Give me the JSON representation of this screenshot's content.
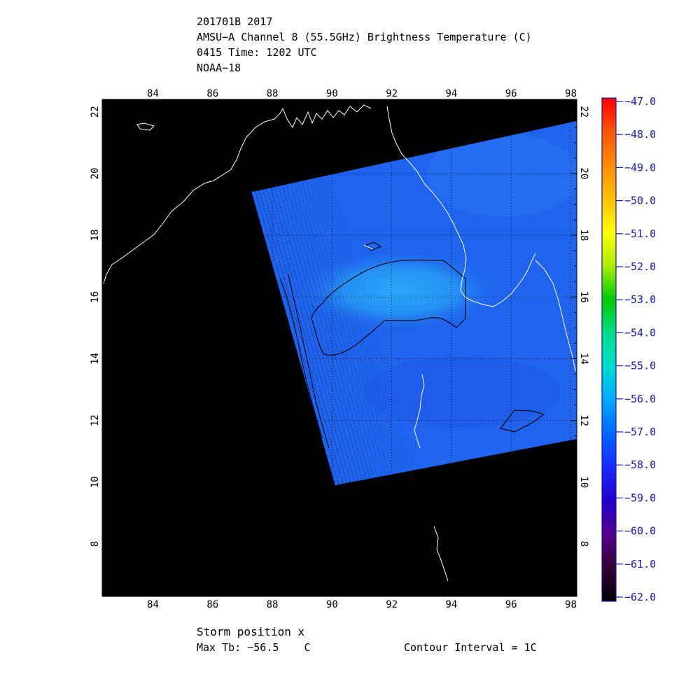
{
  "header": {
    "line1": "201701B 2017",
    "line2": "AMSU−A Channel 8 (55.5GHz) Brightness Temperature (C)",
    "line3": "0415 Time: 1202 UTC",
    "line4": "NOAA−18"
  },
  "map": {
    "lon_range": [
      82.3,
      98.2
    ],
    "lat_range": [
      6.3,
      22.4
    ],
    "lon_ticks": [
      "84",
      "86",
      "88",
      "90",
      "92",
      "94",
      "96",
      "98"
    ],
    "lat_ticks": [
      "8",
      "10",
      "12",
      "14",
      "16",
      "18",
      "20",
      "22"
    ],
    "background_color": "#000000",
    "coastline_color": "#ffffff",
    "swath_color": "#1f63ee",
    "swath_corners_lonlat": [
      [
        87.3,
        19.4
      ],
      [
        98.2,
        21.7
      ],
      [
        98.2,
        11.4
      ],
      [
        90.1,
        9.9
      ]
    ],
    "warm_core_center_lonlat": [
      92.5,
      16.2
    ],
    "grid": "dotted"
  },
  "colorbar": {
    "min": -62.0,
    "max": -47.0,
    "labels": [
      "-47.0",
      "-48.0",
      "-49.0",
      "-50.0",
      "-51.0",
      "-52.0",
      "-53.0",
      "-54.0",
      "-55.0",
      "-56.0",
      "-57.0",
      "-58.0",
      "-59.0",
      "-60.0",
      "-61.0",
      "-62.0"
    ],
    "colors": [
      "#ff0000",
      "#ff5500",
      "#ff8c00",
      "#ffc000",
      "#ffff00",
      "#aaee00",
      "#00cc00",
      "#00dd88",
      "#00ddcc",
      "#00aaff",
      "#0066ff",
      "#1a2aff",
      "#2200cc",
      "#550088",
      "#330033",
      "#000000"
    ]
  },
  "footer": {
    "storm_position": "Storm position x",
    "max_tb": "Max Tb: −56.5    C",
    "contour_interval": "Contour Interval = 1C"
  }
}
